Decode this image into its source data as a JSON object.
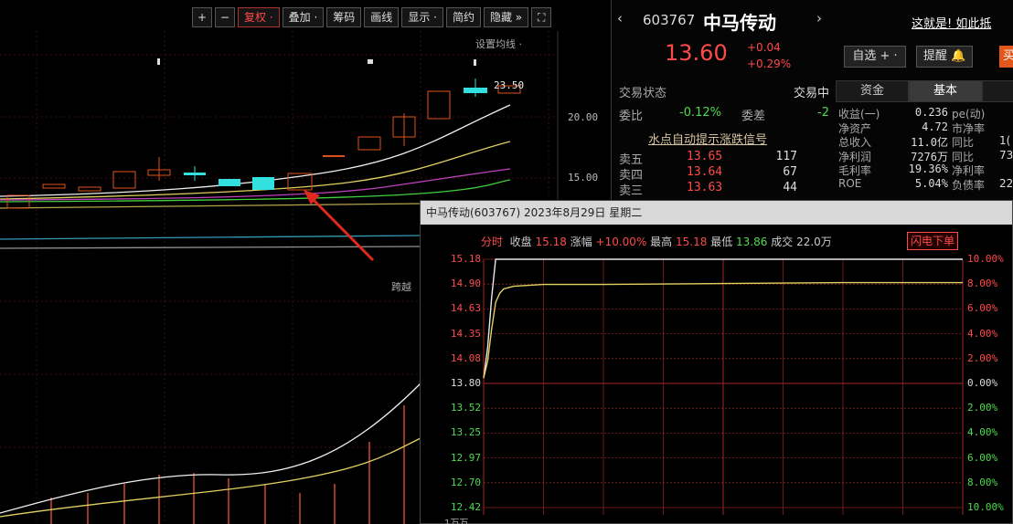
{
  "left_chart": {
    "toolbar": [
      {
        "label": "+",
        "name": "zoom-in-button",
        "square": true
      },
      {
        "label": "−",
        "name": "zoom-out-button",
        "square": true
      },
      {
        "label": "复权 ·",
        "name": "adjust-button",
        "active": true
      },
      {
        "label": "叠加 ·",
        "name": "overlay-button"
      },
      {
        "label": "筹码",
        "name": "chips-button"
      },
      {
        "label": "画线",
        "name": "draw-line-button"
      },
      {
        "label": "显示 ·",
        "name": "display-button"
      },
      {
        "label": "简约",
        "name": "simple-button"
      },
      {
        "label": "隐藏 »",
        "name": "hide-button"
      },
      {
        "label": "⛶",
        "name": "fullscreen-button",
        "square": true
      }
    ],
    "indicator_label": "设置均线 ·",
    "high_label": "23.50",
    "price_labels": [
      "20.00",
      "15.00"
    ],
    "sub_label": "跨越",
    "colors": {
      "up": "#e0501c",
      "down": "#33e0e0",
      "arrow": "#e02a1c"
    }
  },
  "stock": {
    "prev_icon": "‹",
    "code": "603767",
    "name": "中马传动",
    "next_icon": "›",
    "top_link": "这就是!  如此抵",
    "price": "13.60",
    "change_abs": "+0.04",
    "change_pct": "+0.29%",
    "watch_button": "自选 + ·",
    "alert_button": "提醒 🔔",
    "buy_button": "买"
  },
  "trade": {
    "status_label": "交易状态",
    "status_value": "交易中",
    "ratio_label": "委比",
    "ratio_value": "-0.12%",
    "diff_label": "委差",
    "diff_value": "-2",
    "hint_link": "水点自动提示涨跌信号",
    "order_book": [
      {
        "label": "卖五",
        "price": "13.65",
        "vol": "117"
      },
      {
        "label": "卖四",
        "price": "13.64",
        "vol": "67"
      },
      {
        "label": "卖三",
        "price": "13.63",
        "vol": "44"
      }
    ]
  },
  "tabs": [
    {
      "label": "资金",
      "active": false
    },
    {
      "label": "基本",
      "active": true
    },
    {
      "label": "",
      "active": false
    }
  ],
  "fundamentals": [
    {
      "k": "收益(一)",
      "v": "0.236",
      "k2": "pe(动)",
      "v2": ""
    },
    {
      "k": "净资产",
      "v": "4.72",
      "k2": "市净率",
      "v2": ""
    },
    {
      "k": "总收入",
      "v": "11.0亿",
      "k2": "同比",
      "v2": "1("
    },
    {
      "k": "净利润",
      "v": "7276万",
      "k2": "同比",
      "v2": "73"
    },
    {
      "k": "毛利率",
      "v": "19.36%",
      "k2": "净利率",
      "v2": ""
    },
    {
      "k": "ROE",
      "v": "5.04%",
      "k2": "负债率",
      "v2": "22"
    }
  ],
  "intraday": {
    "title": "中马传动(603767)  2023年8月29日  星期二",
    "info": {
      "mode": "分时",
      "close_label": "收盘",
      "close": "15.18",
      "change_label": "涨幅",
      "change": "+10.00%",
      "high_label": "最高",
      "high": "15.18",
      "low_label": "最低",
      "low": "13.86",
      "volume_label": "成交",
      "volume": "22.0万"
    },
    "order_button": "闪电下单",
    "y_left": [
      "15.18",
      "14.90",
      "14.63",
      "14.35",
      "14.08",
      "13.80",
      "13.52",
      "13.25",
      "12.97",
      "12.70",
      "12.42"
    ],
    "y_right": [
      "10.00%",
      "8.00%",
      "6.00%",
      "4.00%",
      "2.00%",
      "0.00%",
      "2.00%",
      "4.00%",
      "6.00%",
      "8.00%",
      "10.00%"
    ],
    "volume_label": "1万万",
    "colors": {
      "up": "#ff4a4a",
      "down": "#4ddb4d",
      "price_line": "#e8e8e8",
      "avg_line": "#e0d060",
      "grid": "#8a2020"
    },
    "chart_data": {
      "type": "line",
      "title": "",
      "xlabel": "",
      "ylabel": "",
      "ylim": [
        12.42,
        15.18
      ],
      "x": [
        0,
        2,
        4,
        6,
        8,
        10,
        15,
        30,
        60,
        120,
        180,
        240
      ],
      "series": [
        {
          "values": [
            13.86,
            14.2,
            14.75,
            15.18,
            15.18,
            15.18,
            15.18,
            15.18,
            15.18,
            15.18,
            15.18,
            15.18
          ]
        },
        {
          "values": [
            13.86,
            14.05,
            14.4,
            14.7,
            14.8,
            14.85,
            14.88,
            14.9,
            14.9,
            14.91,
            14.92,
            14.92
          ]
        }
      ]
    }
  }
}
